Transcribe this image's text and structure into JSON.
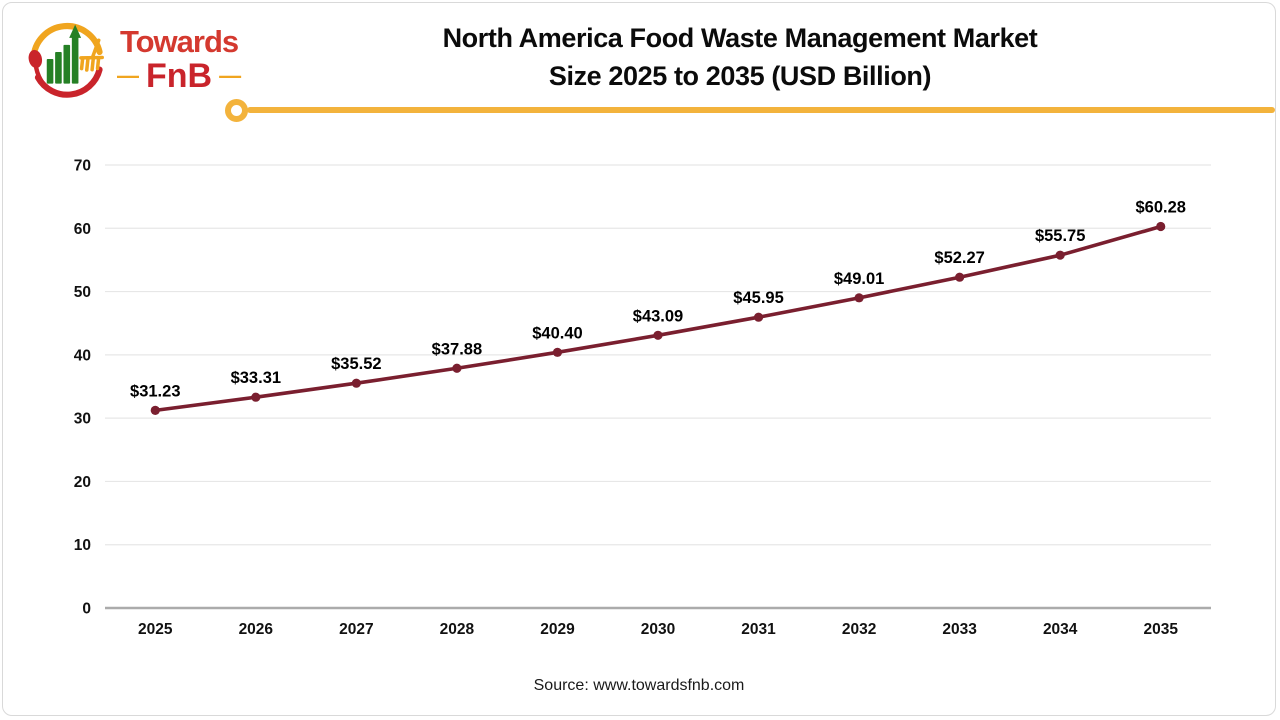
{
  "logo": {
    "text_top": "Towards",
    "text_bottom": "FnB",
    "dash": "—",
    "colors": {
      "red": "#c9242b",
      "bright_red": "#d4392f",
      "green": "#258025",
      "yellow": "#f0a51f"
    }
  },
  "header": {
    "title_line1": "North America Food Waste Management Market",
    "title_line2": "Size 2025 to 2035 (USD Billion)",
    "divider_color": "#f3b33c"
  },
  "chart_data": {
    "type": "line",
    "title": "North America Food Waste Management Market Size 2025 to 2035 (USD Billion)",
    "categories": [
      "2025",
      "2026",
      "2027",
      "2028",
      "2029",
      "2030",
      "2031",
      "2032",
      "2033",
      "2034",
      "2035"
    ],
    "values": [
      31.23,
      33.31,
      35.52,
      37.88,
      40.4,
      43.09,
      45.95,
      49.01,
      52.27,
      55.75,
      60.28
    ],
    "point_labels": [
      "$31.23",
      "$33.31",
      "$35.52",
      "$37.88",
      "$40.40",
      "$43.09",
      "$45.95",
      "$49.01",
      "$52.27",
      "$55.75",
      "$60.28"
    ],
    "xlabel": "",
    "ylabel": "",
    "ylim": [
      0,
      70
    ],
    "yticks": [
      0,
      10,
      20,
      30,
      40,
      50,
      60,
      70
    ],
    "grid": true,
    "legend": false,
    "gridline_color": "#e7e7e7",
    "axis_line_color": "#ababab",
    "line_color": "#7a1f2f",
    "marker": "circle",
    "tick_label_color": "#111111",
    "data_label_color": "#000000"
  },
  "footer": {
    "source": "Source: www.towardsfnb.com"
  }
}
